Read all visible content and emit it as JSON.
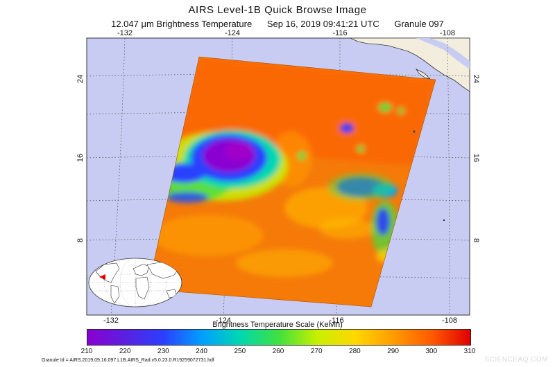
{
  "header": {
    "title": "AIRS Level-1B Quick Browse Image",
    "product": "12.047 μm Brightness Temperature",
    "datetime": "Sep 16, 2019 09:41:21 UTC",
    "granule": "Granule 097"
  },
  "map": {
    "ocean_color": "#c8ccf2",
    "land_color": "#f2eddc",
    "top_lon_labels": [
      "-132",
      "-124",
      "-116",
      "-108"
    ],
    "bottom_lon_labels": [
      "-132",
      "-124",
      "-116",
      "-108"
    ],
    "left_lat_labels": [
      "24",
      "16",
      "8"
    ],
    "right_lat_labels": [
      "24",
      "16",
      "8"
    ]
  },
  "scale": {
    "title": "Brightness Temperature Scale (Kelvin)",
    "labels": [
      "210",
      "220",
      "230",
      "240",
      "250",
      "260",
      "270",
      "280",
      "290",
      "300",
      "310"
    ],
    "min": 210,
    "max": 310
  },
  "footer": {
    "granule_id": "Granule Id = AIRS.2019.09.16.097.L1B.AIRS_Rad.v5.0.23.0.R19259072731.hdf"
  },
  "watermark": "SCIENCEAQ.COM"
}
